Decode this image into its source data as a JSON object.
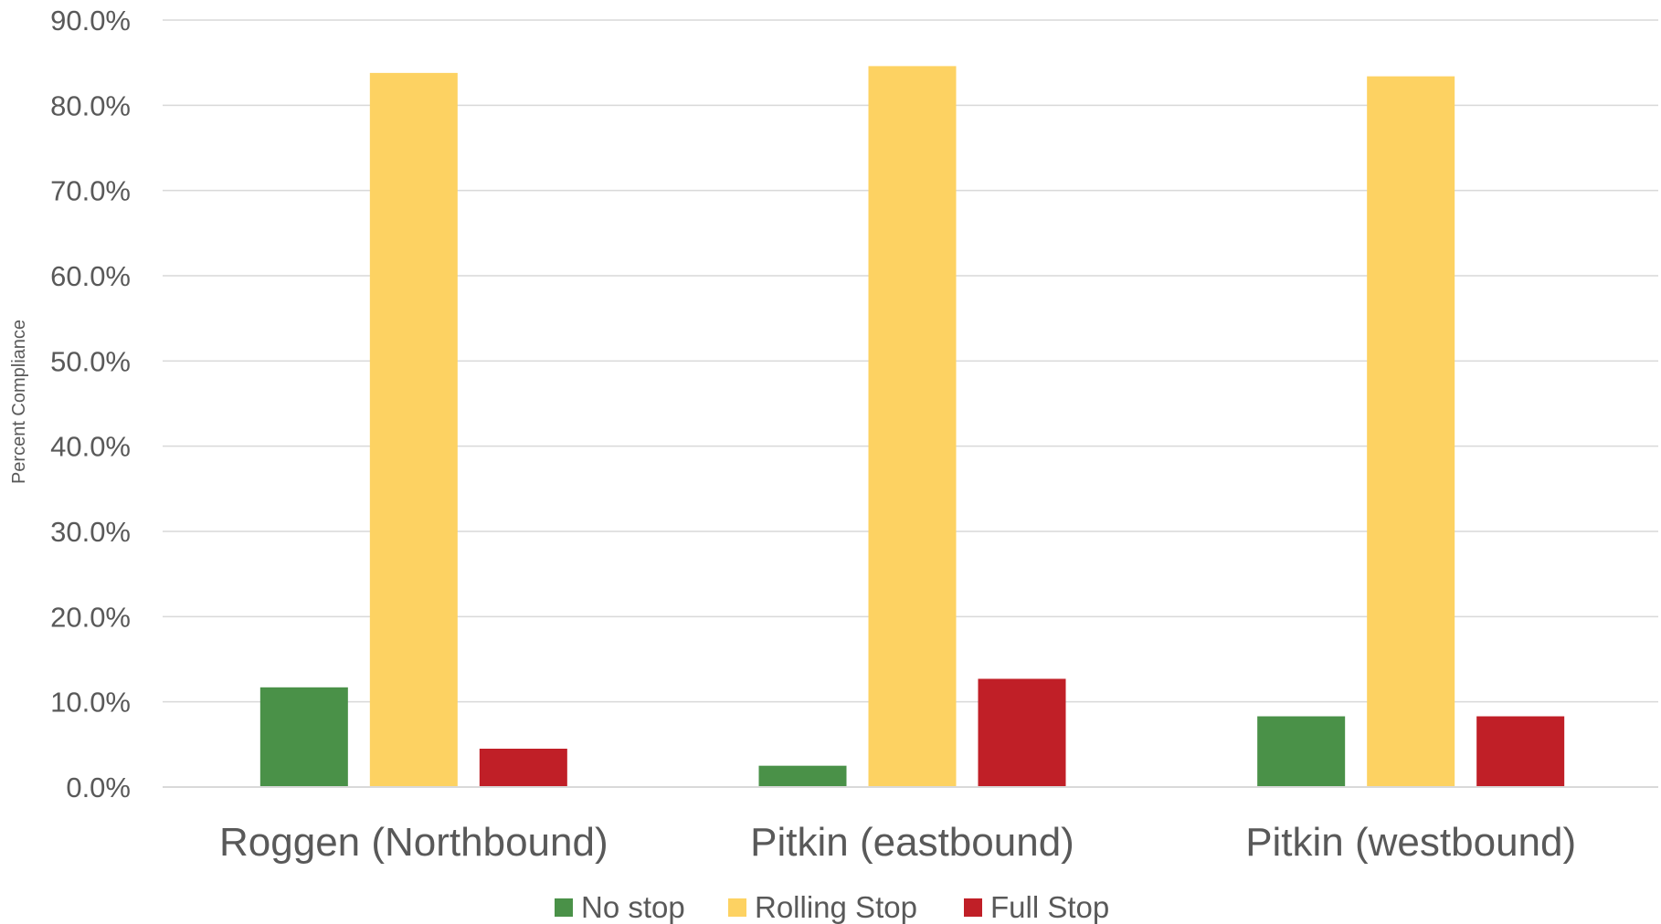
{
  "chart_data": {
    "type": "bar",
    "title": "",
    "xlabel": "",
    "ylabel": "Percent Compliance",
    "ylim": [
      0,
      90
    ],
    "ytick_labels": [
      "0.0%",
      "10.0%",
      "20.0%",
      "30.0%",
      "40.0%",
      "50.0%",
      "60.0%",
      "70.0%",
      "80.0%",
      "90.0%"
    ],
    "grid": true,
    "legend_position": "bottom",
    "categories": [
      "Roggen (Northbound)",
      "Pitkin (eastbound)",
      "Pitkin (westbound)"
    ],
    "series": [
      {
        "name": "No stop",
        "color": "#4a9148",
        "values": [
          11.7,
          2.5,
          8.3
        ]
      },
      {
        "name": "Rolling Stop",
        "color": "#fdd262",
        "values": [
          83.8,
          84.6,
          83.4
        ]
      },
      {
        "name": "Full Stop",
        "color": "#c01f27",
        "values": [
          4.5,
          12.7,
          8.3
        ]
      }
    ]
  }
}
